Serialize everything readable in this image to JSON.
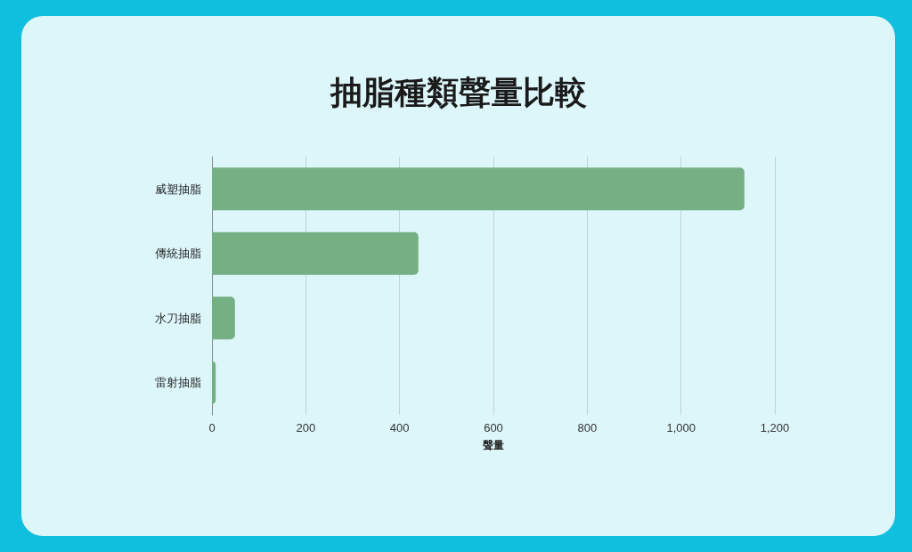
{
  "chart_data": {
    "type": "bar",
    "orientation": "horizontal",
    "title": "抽脂種類聲量比較",
    "xlabel": "聲量",
    "categories": [
      "威塑抽脂",
      "傳統抽脂",
      "水刀抽脂",
      "雷射抽脂"
    ],
    "values": [
      1135,
      440,
      49,
      8
    ],
    "color": "#74b083",
    "xlim": [
      0,
      1200
    ],
    "xticks": [
      0,
      200,
      400,
      600,
      800,
      {
        "value": 1000,
        "label": "1,000"
      },
      {
        "value": 1200,
        "label": "1,200"
      }
    ],
    "grid": "x"
  }
}
